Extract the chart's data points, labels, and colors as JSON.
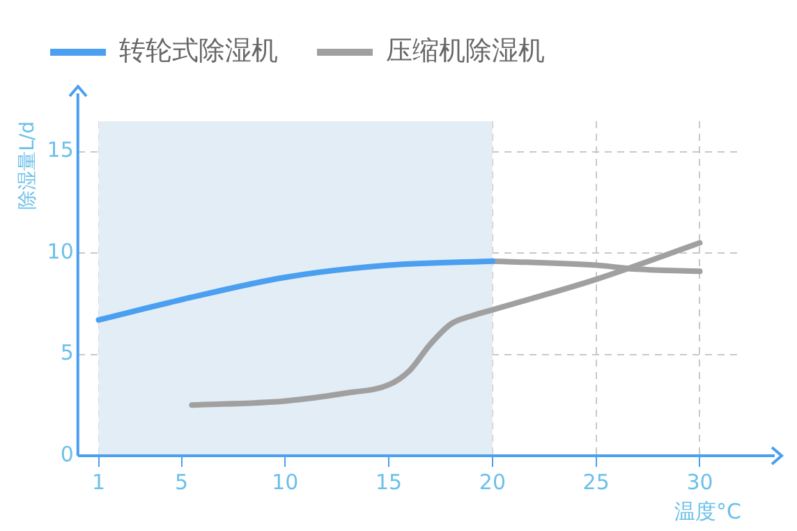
{
  "chart_data": {
    "type": "line",
    "xlabel": "温度°C",
    "ylabel": "除湿量L/d",
    "xlim": [
      0,
      32
    ],
    "xticks": [
      1,
      5,
      10,
      15,
      20,
      25,
      30
    ],
    "ylim": [
      0,
      16.5
    ],
    "yticks": [
      0,
      5,
      10,
      15
    ],
    "grid": true,
    "legend": "top",
    "marker": "none",
    "bands": [
      {
        "axis": "x",
        "from": 1,
        "to": 20,
        "color": "#e3edf6"
      }
    ],
    "series": [
      {
        "name": "转轮式除湿机",
        "color": "#4a9ff0",
        "x": [
          1,
          5,
          10,
          15,
          20
        ],
        "values": [
          6.7,
          7.7,
          8.8,
          9.4,
          9.6
        ]
      },
      {
        "name": "压缩机除湿机",
        "color": "#a0a0a0",
        "x": [
          5.5,
          10,
          13,
          15,
          16,
          17,
          18,
          19,
          20,
          25,
          30
        ],
        "values": [
          2.5,
          2.7,
          3.1,
          3.5,
          4.2,
          5.5,
          6.5,
          6.9,
          7.2,
          8.7,
          10.5
        ]
      },
      {
        "color": "#a0a0a0",
        "x": [
          20,
          25,
          27,
          30
        ],
        "values": [
          9.6,
          9.4,
          9.2,
          9.1
        ]
      }
    ]
  }
}
